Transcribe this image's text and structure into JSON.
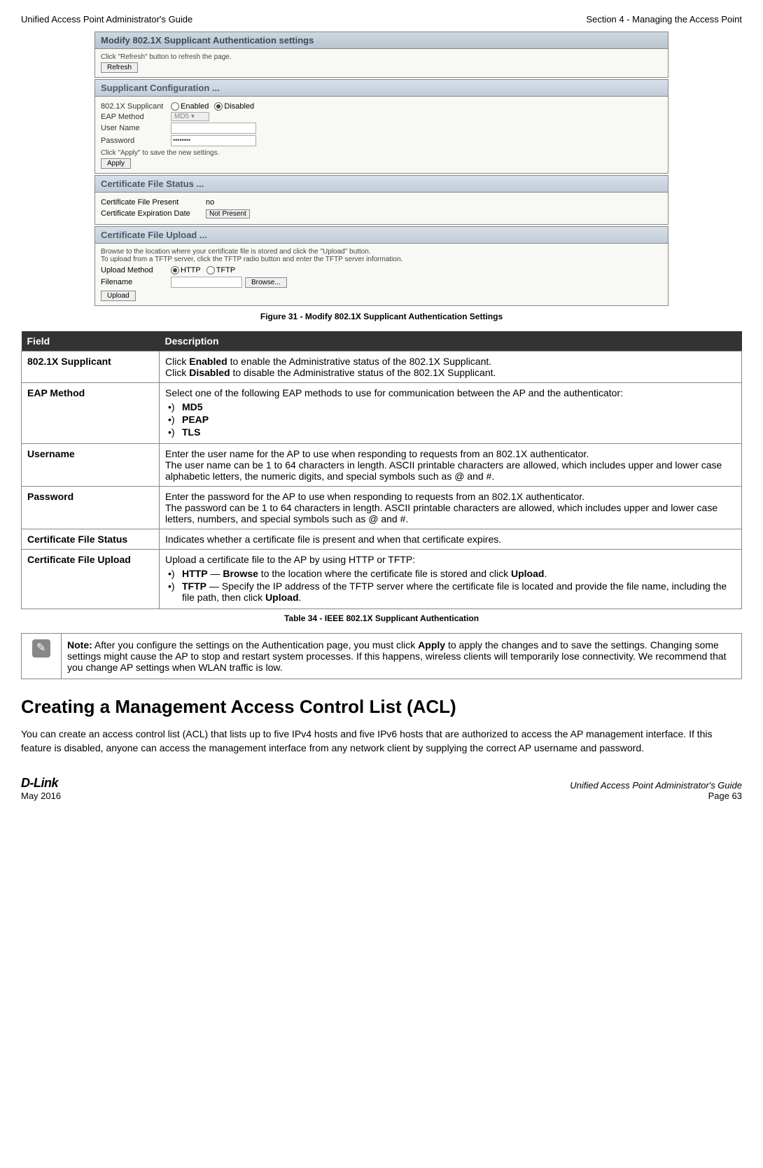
{
  "header": {
    "left": "Unified Access Point Administrator's Guide",
    "right": "Section 4 - Managing the Access Point"
  },
  "screenshot": {
    "main_title": "Modify 802.1X Supplicant Authentication settings",
    "refresh_note": "Click \"Refresh\" button to refresh the page.",
    "refresh_btn": "Refresh",
    "config_title": "Supplicant Configuration ...",
    "row_supplicant_label": "802.1X Supplicant",
    "enabled": "Enabled",
    "disabled": "Disabled",
    "row_eap_label": "EAP Method",
    "eap_value": "MD5 ▾",
    "row_user_label": "User Name",
    "row_pass_label": "Password",
    "apply_note": "Click \"Apply\" to save the new settings.",
    "apply_btn": "Apply",
    "cert_status_title": "Certificate File Status ...",
    "cert_present_label": "Certificate File Present",
    "cert_present_value": "no",
    "cert_exp_label": "Certificate Expiration Date",
    "cert_exp_value": "Not Present",
    "cert_upload_title": "Certificate File Upload ...",
    "upload_note1": "Browse to the location where your certificate file is stored and click the \"Upload\" button.",
    "upload_note2": "To upload from a TFTP server, click the TFTP radio button and enter the TFTP server information.",
    "upload_method_label": "Upload Method",
    "http": "HTTP",
    "tftp": "TFTP",
    "filename_label": "Filename",
    "browse_btn": "Browse...",
    "upload_btn": "Upload"
  },
  "figure_caption": "Figure 31 - Modify 802.1X Supplicant Authentication Settings",
  "table": {
    "th_field": "Field",
    "th_desc": "Description",
    "rows": [
      {
        "field": "802.1X Supplicant",
        "desc_lines": [
          "Click <b>Enabled</b> to enable the Administrative status of the 802.1X Supplicant.",
          "Click <b>Disabled</b> to disable the Administrative status of the 802.1X Supplicant."
        ]
      },
      {
        "field": "EAP Method",
        "desc_intro": "Select one of the following EAP methods to use for communication between the AP and the authenticator:",
        "bullets": [
          "<b>MD5</b>",
          "<b>PEAP</b>",
          "<b>TLS</b>"
        ]
      },
      {
        "field": "Username",
        "desc_lines": [
          "Enter the user name for the AP to use when responding to requests from an 802.1X authenticator.",
          "The user name can be 1 to 64 characters in length. ASCII printable characters are allowed, which includes upper and lower case alphabetic letters, the numeric digits, and special symbols such as @ and #."
        ]
      },
      {
        "field": "Password",
        "desc_lines": [
          "Enter the password for the AP to use when responding to requests from an 802.1X authenticator.",
          "The password can be 1 to 64 characters in length. ASCII printable characters are allowed, which includes upper and lower case letters, numbers, and special symbols such as @ and #."
        ]
      },
      {
        "field": "Certificate File Status",
        "desc_lines": [
          "Indicates whether a certificate file is present and when that certificate expires."
        ]
      },
      {
        "field": "Certificate File Upload",
        "desc_intro": "Upload a certificate file to the AP by using HTTP or TFTP:",
        "bullets": [
          "<b>HTTP</b> — <b>Browse</b> to the location where the certificate file is stored and click <b>Upload</b>.",
          "<b>TFTP</b> — Specify the IP address of the TFTP server where the certificate file is located and provide the file name, including the file path, then click <b>Upload</b>."
        ]
      }
    ]
  },
  "table_caption": "Table 34 - IEEE 802.1X Supplicant Authentication",
  "note": "<b>Note:</b> After you configure the settings on the Authentication page, you must click <b>Apply</b> to apply the changes and to save the settings. Changing some settings might cause the AP to stop and restart system processes. If this happens, wireless clients will temporarily lose connectivity. We recommend that you change AP settings when WLAN traffic is low.",
  "section_title": "Creating a Management Access Control List (ACL)",
  "body_paragraph": "You can create an access control list (ACL) that lists up to five IPv4 hosts and five IPv6 hosts that are authorized to access the AP management interface. If this feature is disabled, anyone can access the management interface from any network client by supplying the correct AP username and password.",
  "footer": {
    "logo": "D-Link",
    "date": "May 2016",
    "right_title": "Unified Access Point Administrator's Guide",
    "page": "Page 63"
  }
}
